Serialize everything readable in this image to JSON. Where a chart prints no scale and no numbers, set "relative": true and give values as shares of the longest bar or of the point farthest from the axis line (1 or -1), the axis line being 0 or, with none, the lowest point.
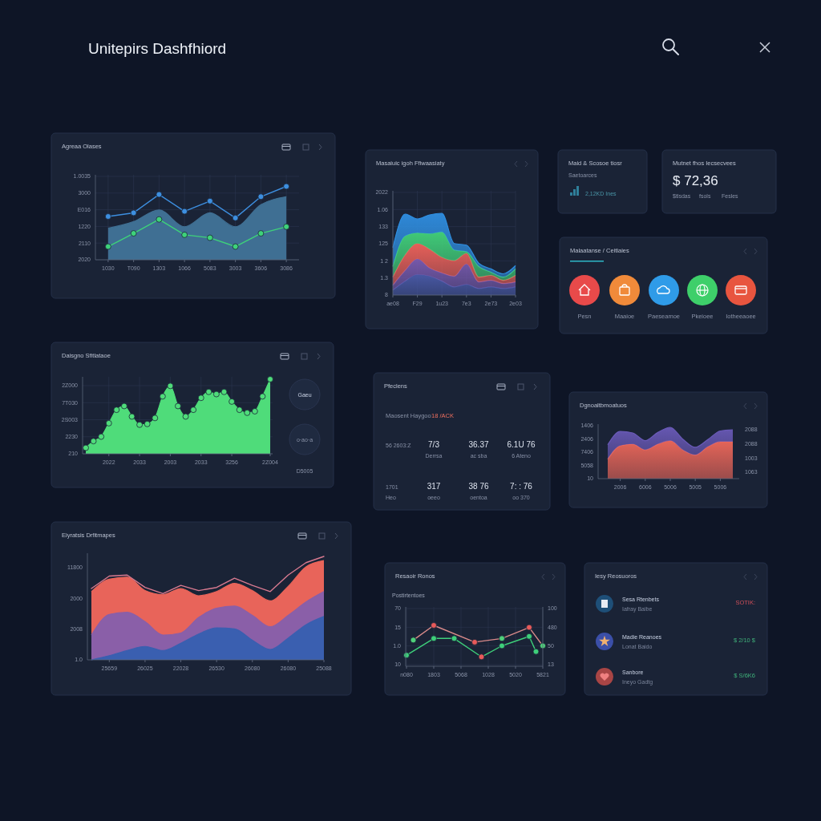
{
  "chart_data": [
    {
      "type": "other",
      "title": "Unitepirs Dashfhiord"
    },
    {
      "type": "line",
      "title": "Agreaa Olases",
      "relative": true,
      "categories": [
        "1030",
        "T090",
        "1303",
        "1066",
        "5083",
        "3003",
        "3606",
        "3086"
      ],
      "grid": true,
      "annotations": [
        "2020",
        "2110",
        "1220",
        "E016",
        "3000",
        "1.0035"
      ],
      "series": [
        {
          "type": "area",
          "color": "#3f6f93",
          "values": [
            0.43,
            0.52,
            0.68,
            0.45,
            0.64,
            0.45,
            0.75,
            0.86
          ]
        },
        {
          "type": "line",
          "color": "#3d8fe0",
          "marker": "circle",
          "values": [
            0.59,
            0.64,
            0.89,
            0.66,
            0.8,
            0.57,
            0.86,
            1.0
          ]
        },
        {
          "type": "line",
          "color": "#3ed27a",
          "marker": "circle",
          "values": [
            0.18,
            0.36,
            0.55,
            0.34,
            0.3,
            0.18,
            0.36,
            0.45
          ]
        }
      ]
    },
    {
      "type": "area",
      "title": "Masaiuic igoh Ffiwaasiaty",
      "relative": true,
      "stacked": true,
      "categories": [
        "ae08",
        null,
        "F29",
        null,
        "1u23",
        null,
        "7e3",
        null,
        "2e73",
        null,
        "2e03"
      ],
      "grid": true,
      "annotations": [
        "8",
        "1.3",
        "1 2",
        "125",
        "133",
        "1.06",
        "2022"
      ],
      "series": [
        {
          "color": "#4a5aa8",
          "values": [
            0.06,
            0.17,
            0.25,
            0.23,
            0.17,
            0.1,
            0.13,
            0.08,
            0.1,
            0.08,
            0.1
          ]
        },
        {
          "color": "#7a5bb0",
          "values": [
            0.06,
            0.13,
            0.19,
            0.1,
            0.1,
            0.13,
            0.25,
            0.08,
            0.08,
            0.06,
            0.06
          ]
        },
        {
          "color": "#f0625a",
          "values": [
            0.1,
            0.19,
            0.19,
            0.23,
            0.19,
            0.19,
            0.13,
            0.06,
            0.06,
            0.04,
            0.08
          ]
        },
        {
          "color": "#42d27a",
          "values": [
            0.13,
            0.23,
            0.13,
            0.19,
            0.31,
            0.13,
            0.02,
            0.13,
            0.04,
            0.04,
            0.08
          ]
        },
        {
          "color": "#2f8ee0",
          "values": [
            0.23,
            0.27,
            0.17,
            0.23,
            0.23,
            0.08,
            0.08,
            0.04,
            0.04,
            0.04,
            0.04
          ]
        }
      ]
    },
    {
      "type": "other",
      "title": "Maid & Scosoe tiosr",
      "annotations": [
        "Saetoarces",
        "2,12KD Ines"
      ]
    },
    {
      "type": "other",
      "title": "Mutnet fhos  Iecsecvees",
      "annotations": [
        "$ 72,36",
        "$tlsdas",
        "fsols",
        "Fesles"
      ]
    },
    {
      "type": "other",
      "title": "Malaatanse / Ceitlaies",
      "annotations": [
        "Pesn",
        "Maaioe",
        "Paeseamoe",
        "Pkeioee",
        "Iotheeaoee"
      ]
    },
    {
      "type": "area",
      "title": "Daisgno Sfitlataoe",
      "relative": true,
      "categories": [
        null,
        null,
        null,
        "2022",
        null,
        null,
        null,
        "2033",
        null,
        null,
        null,
        "2003",
        null,
        null,
        null,
        "2033",
        null,
        null,
        null,
        "3256",
        null,
        null,
        null,
        null,
        "2Z004"
      ],
      "grid": true,
      "marker": "circle",
      "annotations": [
        "210",
        "2230",
        "2S003",
        "7T030",
        "2Z000",
        "Gaeu",
        "o·ao·a",
        "D5005"
      ],
      "series": [
        {
          "color": "#4fdc7a",
          "values": [
            0.08,
            0.17,
            0.23,
            0.41,
            0.59,
            0.64,
            0.5,
            0.39,
            0.4,
            0.48,
            0.77,
            0.91,
            0.64,
            0.5,
            0.59,
            0.75,
            0.83,
            0.8,
            0.83,
            0.7,
            0.59,
            0.55,
            0.57,
            0.77,
            1.0
          ]
        }
      ]
    },
    {
      "type": "other",
      "title": "Pfeclens",
      "annotations": [
        "Maosent Haygoo",
        "18 /ACK",
        "56 2603:Z",
        "7/3",
        "Derrsa",
        "36.37",
        "ac sba",
        "6.1U 76",
        "6 Ateno",
        "1701",
        "Heo",
        "317",
        "oeeo",
        "38 76",
        "oentoa",
        "7: : 76",
        "oo 370"
      ]
    },
    {
      "type": "area",
      "title": "Dgnoaltbmoatuos",
      "relative": true,
      "stacked": true,
      "categories": [
        null,
        "2006",
        null,
        "6006",
        null,
        "5006",
        null,
        "5005",
        null,
        "5006",
        null
      ],
      "annotations": [
        "10",
        "5058",
        "7406",
        "2406",
        "1406",
        "1063",
        "1003",
        "2088",
        "2088"
      ],
      "series": [
        {
          "color": "#f0685a",
          "values": [
            0.38,
            0.64,
            0.67,
            0.56,
            0.67,
            0.74,
            0.56,
            0.46,
            0.62,
            0.72,
            0.72
          ]
        },
        {
          "color": "#6a5ab8",
          "values": [
            0.28,
            0.28,
            0.22,
            0.18,
            0.23,
            0.26,
            0.21,
            0.15,
            0.14,
            0.21,
            0.23
          ]
        }
      ]
    },
    {
      "type": "area",
      "title": "Eiyratsis Drfitmapes",
      "relative": true,
      "categories": [
        null,
        "25659",
        null,
        "26025",
        null,
        "22028",
        null,
        "26530",
        null,
        "26080",
        null,
        "26080",
        null,
        "25088"
      ],
      "annotations": [
        "1.0",
        "2008",
        "2000",
        "11800"
      ],
      "series": [
        {
          "color": "#e8645a",
          "values": [
            0.66,
            0.78,
            0.8,
            0.67,
            0.63,
            0.69,
            0.62,
            0.66,
            0.74,
            0.67,
            0.57,
            0.71,
            0.9,
            0.96
          ]
        },
        {
          "color": "#8a5fa8",
          "values": [
            0.24,
            0.44,
            0.46,
            0.37,
            0.24,
            0.26,
            0.41,
            0.5,
            0.52,
            0.43,
            0.32,
            0.43,
            0.56,
            0.66
          ]
        },
        {
          "color": "#3a5fb0",
          "values": [
            0,
            0.04,
            0.09,
            0.13,
            0.09,
            0.16,
            0.25,
            0.31,
            0.3,
            0.19,
            0.1,
            0.21,
            0.34,
            0.42
          ]
        },
        {
          "type": "line",
          "color": "#d87a90",
          "values": [
            0.69,
            0.81,
            0.82,
            0.7,
            0.64,
            0.72,
            0.67,
            0.7,
            0.79,
            0.72,
            0.66,
            0.82,
            0.94,
            1.0
          ]
        }
      ]
    },
    {
      "type": "line",
      "title": "Resaoir Ronos",
      "subtitle": "Postirtentoes",
      "relative": true,
      "categories": [
        "n080",
        null,
        null,
        null,
        "1803",
        null,
        null,
        null,
        "5068",
        null,
        null,
        null,
        "1028",
        null,
        null,
        null,
        "5020",
        null,
        null,
        null,
        "5821"
      ],
      "grid": true,
      "marker": "circle",
      "annotations": [
        "10",
        "1.0",
        "15",
        "70",
        "13",
        "50",
        "480",
        "100"
      ],
      "series": [
        {
          "color": "#d98a8a",
          "values": [
            null,
            0.64,
            null,
            null,
            1.0,
            null,
            null,
            null,
            null,
            null,
            0.59,
            null,
            null,
            null,
            0.68,
            null,
            null,
            null,
            0.95,
            null,
            0.5
          ],
          "colors": [
            null,
            "#4fd07a",
            null,
            null,
            "#e85a5a",
            null,
            null,
            null,
            null,
            null,
            "#e85a5a",
            null,
            null,
            null,
            "#4fd07a",
            null,
            null,
            null,
            "#e85a5a",
            null,
            "#4fd07a"
          ]
        },
        {
          "color": "#3ecf7a",
          "values": [
            0.27,
            null,
            null,
            null,
            0.68,
            null,
            null,
            0.68,
            null,
            null,
            null,
            0.23,
            null,
            null,
            0.5,
            null,
            null,
            null,
            0.73,
            0.36,
            null
          ],
          "colors": [
            "#3ecf7a",
            null,
            null,
            null,
            "#3ecf7a",
            null,
            null,
            "#3ecf7a",
            null,
            null,
            null,
            "#e85a5a",
            null,
            null,
            "#3ecf7a",
            null,
            null,
            null,
            "#3ecf7a",
            "#3ecf7a",
            null
          ]
        }
      ]
    },
    {
      "type": "other",
      "title": "Iesy Reosuoros",
      "annotations": [
        "Sesa Rtenbets",
        "Iafray Baibe",
        "SOTIK:",
        "Madie Reanoes",
        "Lonat Baido",
        "$ 2/10 $",
        "Sanbore",
        "Ineyo Gadtg",
        "$ S/6K6"
      ]
    }
  ]
}
